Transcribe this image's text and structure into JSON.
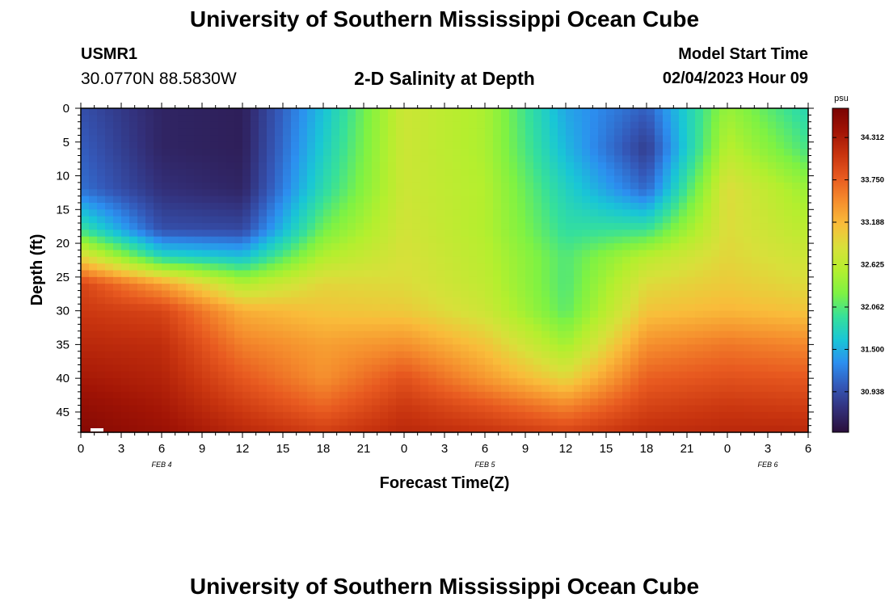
{
  "header": {
    "title": "University of Southern Mississippi Ocean Cube",
    "station": "USMR1",
    "coords": "30.0770N  88.5830W",
    "subtitle": "2-D Salinity at Depth",
    "model_start_label": "Model Start Time",
    "model_start_value": "02/04/2023 Hour 09"
  },
  "footer": {
    "title": "University of Southern Mississippi Ocean Cube"
  },
  "chart_data": {
    "type": "heatmap",
    "title": "2-D Salinity at Depth",
    "xlabel": "Forecast Time(Z)",
    "ylabel": "Depth (ft)",
    "x_tick_labels": [
      "0",
      "3",
      "6",
      "9",
      "12",
      "15",
      "18",
      "21",
      "0",
      "3",
      "6",
      "9",
      "12",
      "15",
      "18",
      "21",
      "0",
      "3",
      "6"
    ],
    "x_day_labels": [
      "FEB 4",
      "FEB 5",
      "FEB 6"
    ],
    "y_ticks": [
      0,
      5,
      10,
      15,
      20,
      25,
      30,
      35,
      40,
      45
    ],
    "ylim": [
      0,
      48
    ],
    "colorbar": {
      "unit": "psu",
      "ticks": [
        30.938,
        31.5,
        32.062,
        32.625,
        33.188,
        33.75,
        34.312
      ],
      "range": [
        30.4,
        34.7
      ]
    },
    "colormap_stops": [
      "#2a0f3a",
      "#33307a",
      "#3458b8",
      "#2c8ff0",
      "#19c6d6",
      "#36e09a",
      "#7ef243",
      "#b4ef2e",
      "#d8e03a",
      "#f9bc3a",
      "#f58d2d",
      "#e85a20",
      "#c8340f",
      "#a11405",
      "#7a0403"
    ],
    "x_hours": [
      0,
      6,
      12,
      18,
      24,
      30,
      36,
      42,
      48,
      54
    ],
    "depths": [
      0,
      6,
      12,
      18,
      22,
      26,
      30,
      35,
      40,
      44,
      48
    ],
    "salinity": [
      [
        30.95,
        30.6,
        30.55,
        31.6,
        32.75,
        32.5,
        31.45,
        31.05,
        32.4,
        31.8
      ],
      [
        31.05,
        30.6,
        30.55,
        31.7,
        32.75,
        32.5,
        31.55,
        30.8,
        32.6,
        32.0
      ],
      [
        31.15,
        30.7,
        30.6,
        31.85,
        32.75,
        32.55,
        31.75,
        31.1,
        32.9,
        32.4
      ],
      [
        31.95,
        30.95,
        30.9,
        32.2,
        32.8,
        32.55,
        31.9,
        31.95,
        32.9,
        32.6
      ],
      [
        32.95,
        31.8,
        31.6,
        32.55,
        32.85,
        32.6,
        32.05,
        32.6,
        32.95,
        32.75
      ],
      [
        33.95,
        33.35,
        32.55,
        32.95,
        32.9,
        32.65,
        32.05,
        32.9,
        33.05,
        32.9
      ],
      [
        34.05,
        33.95,
        33.25,
        33.1,
        33.05,
        32.75,
        32.1,
        33.1,
        33.2,
        33.1
      ],
      [
        34.2,
        34.15,
        33.55,
        33.35,
        33.45,
        33.1,
        32.45,
        33.45,
        33.6,
        33.5
      ],
      [
        34.35,
        34.25,
        33.8,
        33.45,
        33.85,
        33.4,
        32.95,
        33.75,
        33.85,
        33.8
      ],
      [
        34.5,
        34.35,
        34.0,
        33.7,
        34.05,
        33.8,
        33.5,
        33.95,
        34.05,
        34.0
      ],
      [
        34.6,
        34.45,
        34.2,
        34.0,
        34.2,
        34.1,
        33.95,
        34.15,
        34.2,
        34.2
      ]
    ]
  }
}
